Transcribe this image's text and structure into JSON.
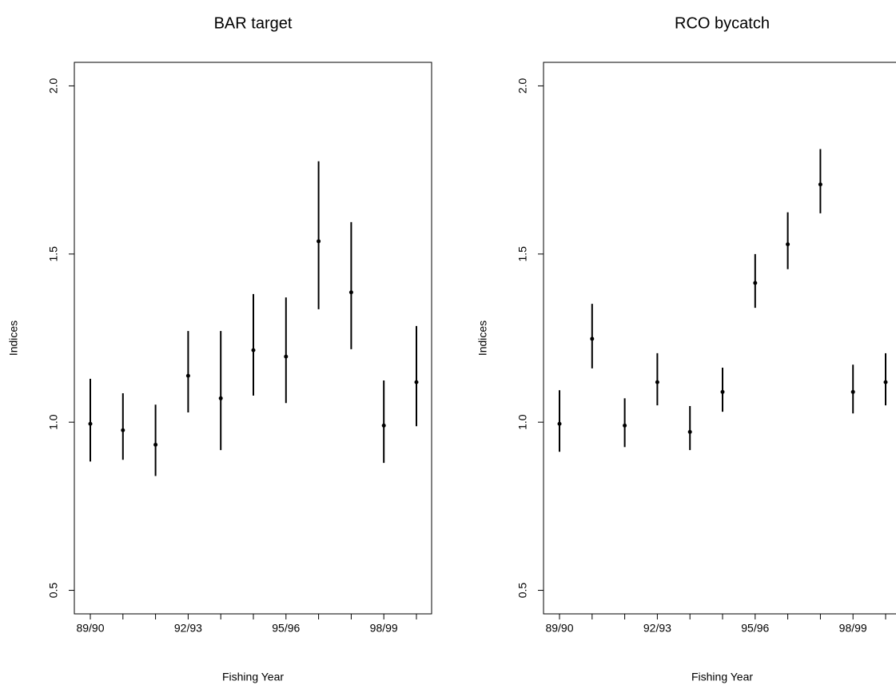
{
  "chart_data": [
    {
      "type": "errorbar",
      "title": "BAR target",
      "x_label": "Fishing Year",
      "y_label": "Indices",
      "categories": [
        "89/90",
        null,
        null,
        "92/93",
        null,
        null,
        "95/96",
        null,
        null,
        "98/99",
        null
      ],
      "series": [
        {
          "color": "#000000",
          "values": [
            0.995,
            0.976,
            0.933,
            1.138,
            1.071,
            1.214,
            1.195,
            1.538,
            1.386,
            0.99,
            1.119
          ],
          "lower": [
            0.883,
            0.888,
            0.84,
            1.029,
            0.917,
            1.079,
            1.057,
            1.336,
            1.217,
            0.879,
            0.988
          ],
          "upper": [
            1.129,
            1.086,
            1.052,
            1.271,
            1.271,
            1.381,
            1.371,
            1.776,
            1.595,
            1.124,
            1.286
          ]
        }
      ],
      "ylim": [
        0.43,
        2.07
      ],
      "yticks": [
        0.5,
        {
          "value": 1,
          "label": "1.0"
        },
        1.5,
        {
          "value": 2,
          "label": "2.0"
        }
      ]
    },
    {
      "type": "errorbar",
      "title": "RCO bycatch",
      "x_label": "Fishing Year",
      "y_label": "Indices",
      "categories": [
        "89/90",
        null,
        null,
        "92/93",
        null,
        null,
        "95/96",
        null,
        null,
        "98/99",
        null
      ],
      "series": [
        {
          "color": "#000000",
          "values": [
            0.995,
            1.248,
            0.99,
            1.119,
            0.971,
            1.09,
            1.414,
            1.529,
            1.707,
            1.09,
            1.119
          ],
          "lower": [
            0.912,
            1.16,
            0.926,
            1.05,
            0.917,
            1.031,
            1.34,
            1.455,
            1.621,
            1.026,
            1.05
          ],
          "upper": [
            1.095,
            1.352,
            1.071,
            1.205,
            1.048,
            1.162,
            1.5,
            1.624,
            1.812,
            1.171,
            1.205
          ]
        }
      ],
      "ylim": [
        0.43,
        2.07
      ],
      "yticks": [
        0.5,
        {
          "value": 1,
          "label": "1.0"
        },
        1.5,
        {
          "value": 2,
          "label": "2.0"
        }
      ]
    }
  ]
}
